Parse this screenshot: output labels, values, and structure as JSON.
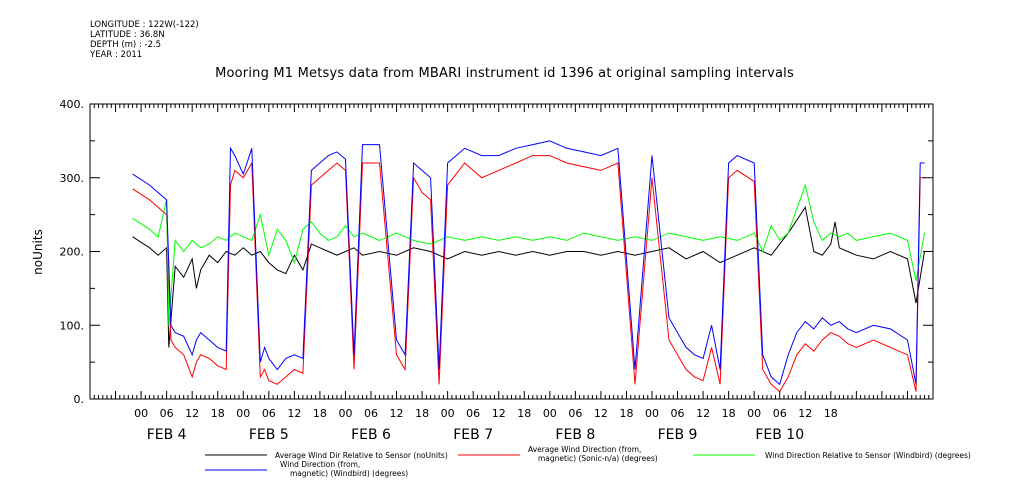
{
  "meta": {
    "longitude": "LONGITUDE : 122W(-122)",
    "latitude": "LATITUDE : 36.8N",
    "depth": "DEPTH (m) : -2.5",
    "year": "YEAR : 2011"
  },
  "chart_data": {
    "type": "line",
    "title": "Mooring M1 Metsys data from MBARI instrument id 1396 at original sampling intervals",
    "ylabel": "noUnits",
    "xlabel": "",
    "ylim": [
      0,
      400
    ],
    "yticks": [
      "0.",
      "100.",
      "200.",
      "300.",
      "400."
    ],
    "ytick_values": [
      0,
      100,
      200,
      300,
      400
    ],
    "xlim_hours": [
      -12,
      186
    ],
    "xtick_labels": [
      "00",
      "06",
      "12",
      "18",
      "00",
      "06",
      "12",
      "18",
      "00",
      "06",
      "12",
      "18",
      "00",
      "06",
      "12",
      "18",
      "00",
      "06",
      "12",
      "18",
      "00",
      "06",
      "12",
      "18",
      "00",
      "06",
      "12",
      "18"
    ],
    "day_labels": [
      "FEB  4",
      "FEB  5",
      "FEB  6",
      "FEB  7",
      "FEB  8",
      "FEB  9",
      "FEB 10"
    ],
    "grid": false,
    "legend_position": "bottom",
    "x_unit": "hours since 2011-02-04 00:00",
    "series": [
      {
        "name": "Average Wind Dir Relative to Sensor (noUnits)",
        "color": "#000000",
        "x": [
          -2,
          2,
          4,
          6,
          6.5,
          8,
          10,
          12,
          13,
          14,
          16,
          18,
          20,
          22,
          24,
          26,
          28,
          30,
          32,
          34,
          36,
          38,
          40,
          42,
          44,
          46,
          48,
          50,
          52,
          56,
          60,
          64,
          68,
          72,
          76,
          80,
          84,
          88,
          92,
          96,
          100,
          104,
          108,
          112,
          116,
          120,
          124,
          128,
          132,
          136,
          140,
          144,
          148,
          152,
          156,
          158,
          160,
          162,
          163,
          164,
          166,
          168,
          172,
          176,
          180,
          182,
          184
        ],
        "y": [
          220,
          205,
          195,
          205,
          70,
          180,
          165,
          190,
          150,
          175,
          195,
          185,
          200,
          195,
          205,
          195,
          200,
          185,
          175,
          170,
          195,
          175,
          210,
          205,
          200,
          195,
          200,
          205,
          195,
          200,
          195,
          205,
          200,
          190,
          200,
          195,
          200,
          195,
          200,
          195,
          200,
          200,
          195,
          200,
          195,
          200,
          205,
          190,
          200,
          185,
          195,
          205,
          195,
          225,
          260,
          200,
          195,
          210,
          240,
          205,
          200,
          195,
          190,
          200,
          190,
          130,
          200
        ]
      },
      {
        "name": "Average Wind Direction (from, magnetic) (Sonic-n/a) (degrees)",
        "color": "#ff0000",
        "x": [
          -2,
          2,
          4,
          6,
          7,
          8,
          10,
          12,
          13,
          14,
          16,
          18,
          20,
          21,
          22,
          24,
          26,
          28,
          29,
          30,
          32,
          34,
          36,
          38,
          40,
          42,
          44,
          46,
          48,
          50,
          52,
          56,
          60,
          62,
          64,
          66,
          68,
          70,
          72,
          76,
          80,
          84,
          88,
          92,
          96,
          100,
          104,
          108,
          112,
          116,
          120,
          124,
          126,
          128,
          130,
          132,
          134,
          136,
          138,
          140,
          144,
          146,
          148,
          150,
          152,
          154,
          156,
          158,
          160,
          162,
          164,
          166,
          168,
          172,
          176,
          180,
          182,
          183,
          184
        ],
        "y": [
          285,
          270,
          260,
          250,
          80,
          70,
          60,
          30,
          50,
          60,
          55,
          45,
          40,
          290,
          310,
          300,
          320,
          30,
          40,
          25,
          20,
          30,
          40,
          35,
          290,
          300,
          310,
          320,
          310,
          40,
          320,
          320,
          60,
          40,
          300,
          280,
          270,
          20,
          290,
          320,
          300,
          310,
          320,
          330,
          330,
          320,
          315,
          310,
          320,
          20,
          300,
          80,
          60,
          40,
          30,
          25,
          70,
          20,
          300,
          310,
          295,
          40,
          20,
          10,
          30,
          60,
          75,
          65,
          80,
          90,
          85,
          75,
          70,
          80,
          70,
          60,
          10,
          300,
          300
        ]
      },
      {
        "name": "Wind Direction Relative to Sensor (Windbird) (degrees)",
        "color": "#00ff00",
        "x": [
          -2,
          2,
          4,
          6,
          6.5,
          8,
          10,
          12,
          14,
          16,
          18,
          20,
          22,
          24,
          26,
          28,
          30,
          32,
          34,
          36,
          38,
          40,
          42,
          44,
          46,
          48,
          50,
          52,
          56,
          60,
          64,
          68,
          72,
          76,
          80,
          84,
          88,
          92,
          96,
          100,
          104,
          108,
          112,
          116,
          120,
          124,
          128,
          132,
          136,
          140,
          144,
          146,
          148,
          150,
          152,
          156,
          158,
          160,
          162,
          164,
          166,
          168,
          172,
          176,
          180,
          182,
          184
        ],
        "y": [
          245,
          230,
          220,
          270,
          100,
          215,
          200,
          215,
          205,
          210,
          220,
          215,
          225,
          220,
          215,
          250,
          195,
          230,
          215,
          185,
          230,
          240,
          225,
          215,
          220,
          235,
          220,
          225,
          215,
          225,
          215,
          210,
          220,
          215,
          220,
          215,
          220,
          215,
          220,
          215,
          225,
          220,
          215,
          220,
          215,
          225,
          220,
          215,
          220,
          215,
          225,
          200,
          235,
          215,
          225,
          290,
          240,
          215,
          225,
          220,
          225,
          215,
          220,
          225,
          215,
          160,
          225
        ]
      },
      {
        "name": "Wind Direction (from, magnetic) (Windbird) (degrees)",
        "color": "#0000ff",
        "x": [
          -2,
          2,
          4,
          6,
          7,
          8,
          10,
          12,
          13,
          14,
          16,
          18,
          20,
          21,
          22,
          24,
          26,
          28,
          29,
          30,
          32,
          34,
          36,
          38,
          40,
          42,
          44,
          46,
          48,
          50,
          52,
          56,
          60,
          62,
          64,
          66,
          68,
          70,
          72,
          76,
          80,
          84,
          88,
          92,
          96,
          100,
          104,
          108,
          112,
          116,
          120,
          124,
          126,
          128,
          130,
          132,
          134,
          136,
          138,
          140,
          144,
          146,
          148,
          150,
          152,
          154,
          156,
          158,
          160,
          162,
          164,
          166,
          168,
          172,
          176,
          180,
          182,
          183,
          184
        ],
        "y": [
          305,
          290,
          280,
          270,
          100,
          90,
          85,
          60,
          80,
          90,
          80,
          70,
          65,
          340,
          330,
          305,
          340,
          50,
          70,
          55,
          40,
          55,
          60,
          55,
          310,
          320,
          330,
          335,
          325,
          60,
          345,
          345,
          80,
          60,
          320,
          310,
          300,
          40,
          320,
          340,
          330,
          330,
          340,
          345,
          350,
          340,
          335,
          330,
          340,
          40,
          330,
          110,
          90,
          70,
          60,
          55,
          100,
          40,
          320,
          330,
          320,
          60,
          30,
          20,
          60,
          90,
          105,
          95,
          110,
          100,
          105,
          95,
          90,
          100,
          95,
          80,
          20,
          320,
          320
        ]
      }
    ]
  }
}
